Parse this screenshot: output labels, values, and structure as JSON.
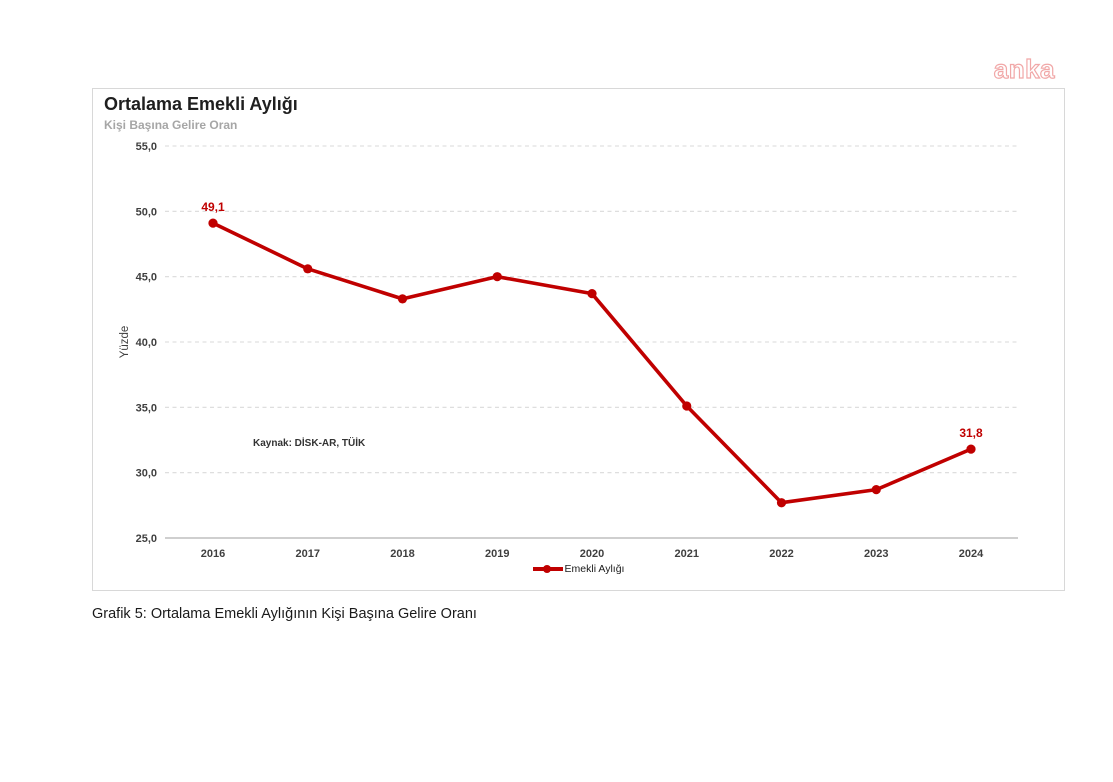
{
  "page": {
    "watermark": "anka",
    "caption": "Grafik 5: Ortalama Emekli Aylığının Kişi Başına Gelire Oranı"
  },
  "chart_data": {
    "type": "line",
    "title": "Ortalama Emekli Aylığı",
    "subtitle": "Kişi Başına Gelire Oran",
    "ylabel": "Yüzde",
    "xlabel": "",
    "categories": [
      "2016",
      "2017",
      "2018",
      "2019",
      "2020",
      "2021",
      "2022",
      "2023",
      "2024"
    ],
    "series": [
      {
        "name": "Emekli Aylığı",
        "values": [
          49.1,
          45.6,
          43.3,
          45.0,
          43.7,
          35.1,
          27.7,
          28.7,
          31.8
        ]
      }
    ],
    "ylim": [
      25,
      55
    ],
    "ytick_step": 5,
    "ytick_labels": [
      "25,0",
      "30,0",
      "35,0",
      "40,0",
      "45,0",
      "50,0",
      "55,0"
    ],
    "point_labels": [
      {
        "index": 0,
        "text": "49,1"
      },
      {
        "index": 8,
        "text": "31,8"
      }
    ],
    "source_note": "Kaynak: DİSK-AR, TÜİK",
    "grid": "horizontal dashed",
    "legend_position": "bottom center",
    "line_color": "#c00000",
    "grid_color": "#d9d9d9",
    "axis_color": "#bfbfbf",
    "tick_color": "#3f3f3f"
  }
}
